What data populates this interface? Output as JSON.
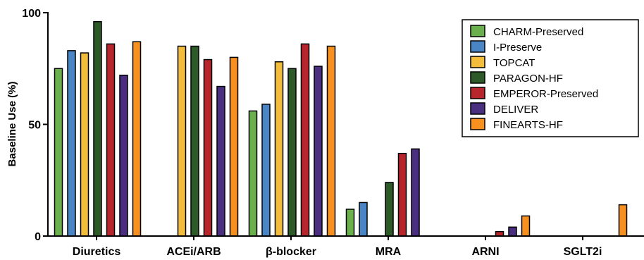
{
  "chart_data": {
    "type": "bar",
    "ylabel": "Baseline Use (%)",
    "ylim": [
      0,
      100
    ],
    "yticks": [
      0,
      50,
      100
    ],
    "grid": false,
    "legend_position": "top-right",
    "categories": [
      "Diuretics",
      "ACEi/ARB",
      "β-blocker",
      "MRA",
      "ARNI",
      "SGLT2i"
    ],
    "series": [
      {
        "name": "CHARM-Preserved",
        "color": "#6ab04c",
        "values": [
          75,
          null,
          56,
          12,
          null,
          null
        ]
      },
      {
        "name": "I-Preserve",
        "color": "#4a86c5",
        "values": [
          83,
          null,
          59,
          15,
          null,
          null
        ]
      },
      {
        "name": "TOPCAT",
        "color": "#f3bd3c",
        "values": [
          82,
          85,
          78,
          null,
          null,
          null
        ]
      },
      {
        "name": "PARAGON-HF",
        "color": "#2e5a2a",
        "values": [
          96,
          85,
          75,
          24,
          null,
          null
        ]
      },
      {
        "name": "EMPEROR-Preserved",
        "color": "#b8262d",
        "values": [
          86,
          79,
          86,
          37,
          2,
          null
        ]
      },
      {
        "name": "DELIVER",
        "color": "#4a2f80",
        "values": [
          72,
          67,
          76,
          39,
          4,
          null
        ]
      },
      {
        "name": "FINEARTS-HF",
        "color": "#f7901e",
        "values": [
          87,
          80,
          85,
          null,
          9,
          14
        ]
      }
    ]
  }
}
